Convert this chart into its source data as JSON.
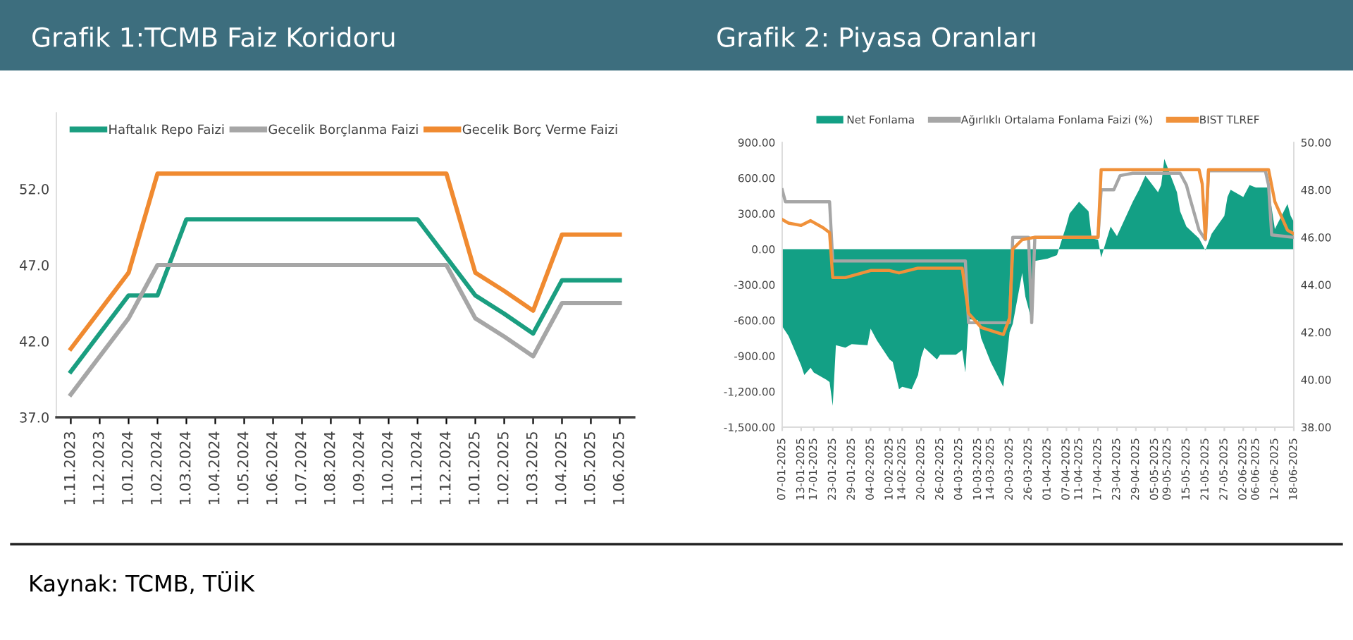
{
  "chart_data": [
    {
      "type": "line",
      "title": "Grafik 1:TCMB Faiz Koridoru",
      "categories": [
        "1.11.2023",
        "1.12.2023",
        "1.01.2024",
        "1.02.2024",
        "1.03.2024",
        "1.04.2024",
        "1.05.2024",
        "1.06.2024",
        "1.07.2024",
        "1.08.2024",
        "1.09.2024",
        "1.10.2024",
        "1.11.2024",
        "1.12.2024",
        "1.01.2025",
        "1.02.2025",
        "1.03.2025",
        "1.04.2025",
        "1.05.2025",
        "1.06.2025"
      ],
      "series": [
        {
          "name": "Haftalık Repo Faizi",
          "color": "#1a9e80",
          "values": [
            40,
            42.5,
            45,
            45,
            50,
            50,
            50,
            50,
            50,
            50,
            50,
            50,
            50,
            47.5,
            45,
            43.8,
            42.5,
            46,
            46,
            46
          ]
        },
        {
          "name": "Gecelik Borçlanma Faizi",
          "color": "#a6a6a6",
          "values": [
            38.5,
            41,
            43.5,
            47,
            47,
            47,
            47,
            47,
            47,
            47,
            47,
            47,
            47,
            47,
            43.5,
            42.3,
            41,
            44.5,
            44.5,
            44.5
          ]
        },
        {
          "name": "Gecelik Borç Verme Faizi",
          "color": "#f08a30",
          "values": [
            41.5,
            44,
            46.5,
            53,
            53,
            53,
            53,
            53,
            53,
            53,
            53,
            53,
            53,
            53,
            46.5,
            45.3,
            44,
            49,
            49,
            49
          ]
        }
      ],
      "ylim": [
        37,
        57
      ],
      "yticks": [
        {
          "value": 37,
          "label": "37.0"
        },
        {
          "value": 42,
          "label": "42.0"
        },
        {
          "value": 47,
          "label": "47.0"
        },
        {
          "value": 52,
          "label": "52.0"
        }
      ],
      "grid": false,
      "legend": "top",
      "line_style": "solid",
      "marker": "none",
      "annotations": [
        "Kaynak: TCMB, TÜİK"
      ]
    },
    {
      "type": "line",
      "title": "Grafik 2: Piyasa Oranları",
      "series": [
        {
          "name": "Net Fonlama",
          "type": "area",
          "color": "#13a085",
          "x": [
            "2025-01-07",
            "2025-01-09",
            "2025-01-13",
            "2025-01-14",
            "2025-01-16",
            "2025-01-17",
            "2025-01-21",
            "2025-01-22",
            "2025-01-23",
            "2025-01-24",
            "2025-01-27",
            "2025-01-29",
            "2025-02-03",
            "2025-02-04",
            "2025-02-06",
            "2025-02-10",
            "2025-02-11",
            "2025-02-13",
            "2025-02-14",
            "2025-02-17",
            "2025-02-19",
            "2025-02-20",
            "2025-02-21",
            "2025-02-25",
            "2025-02-26",
            "2025-03-03",
            "2025-03-05",
            "2025-03-06",
            "2025-03-07",
            "2025-03-10",
            "2025-03-11",
            "2025-03-14",
            "2025-03-18",
            "2025-03-19",
            "2025-03-20",
            "2025-03-21",
            "2025-03-24",
            "2025-03-25",
            "2025-03-26",
            "2025-03-27",
            "2025-03-28",
            "2025-04-01",
            "2025-04-04",
            "2025-04-07",
            "2025-04-08",
            "2025-04-11",
            "2025-04-14",
            "2025-04-15",
            "2025-04-17",
            "2025-04-18",
            "2025-04-21",
            "2025-04-23",
            "2025-04-28",
            "2025-04-30",
            "2025-05-02",
            "2025-05-06",
            "2025-05-07",
            "2025-05-08",
            "2025-05-12",
            "2025-05-13",
            "2025-05-15",
            "2025-05-19",
            "2025-05-21",
            "2025-05-23",
            "2025-05-27",
            "2025-05-28",
            "2025-05-29",
            "2025-06-02",
            "2025-06-04",
            "2025-06-06",
            "2025-06-10",
            "2025-06-12",
            "2025-06-16",
            "2025-06-17",
            "2025-06-18"
          ],
          "values": [
            -650,
            -730,
            -980,
            -1060,
            -1000,
            -1040,
            -1100,
            -1120,
            -1320,
            -810,
            -830,
            -800,
            -810,
            -670,
            -770,
            -930,
            -950,
            -1180,
            -1160,
            -1180,
            -1060,
            -910,
            -830,
            -930,
            -890,
            -890,
            -850,
            -1040,
            -590,
            -600,
            -750,
            -950,
            -1160,
            -950,
            -700,
            -630,
            -200,
            -400,
            -500,
            -610,
            -100,
            -80,
            -50,
            200,
            300,
            400,
            320,
            90,
            80,
            -70,
            190,
            110,
            400,
            500,
            620,
            480,
            540,
            760,
            480,
            320,
            190,
            90,
            -10,
            130,
            280,
            440,
            500,
            440,
            540,
            520,
            520,
            170,
            380,
            280,
            230
          ]
        },
        {
          "name": "Ağırlıklı Ortalama Fonlama Faizi (%)",
          "type": "line",
          "axis": "y2",
          "color": "#a6a6a6",
          "x": [
            "2025-01-07",
            "2025-01-08",
            "2025-01-22",
            "2025-01-23",
            "2025-03-06",
            "2025-03-07",
            "2025-03-20",
            "2025-03-21",
            "2025-03-26",
            "2025-03-27",
            "2025-03-28",
            "2025-04-17",
            "2025-04-18",
            "2025-04-22",
            "2025-04-24",
            "2025-04-28",
            "2025-05-13",
            "2025-05-15",
            "2025-05-16",
            "2025-05-19",
            "2025-05-21",
            "2025-05-22",
            "2025-06-09",
            "2025-06-10",
            "2025-06-11",
            "2025-06-18"
          ],
          "values": [
            48.0,
            47.5,
            47.5,
            45.0,
            45.0,
            42.4,
            42.4,
            46.0,
            46.0,
            42.4,
            46.0,
            46.0,
            48.0,
            48.0,
            48.6,
            48.7,
            48.7,
            48.2,
            47.7,
            46.3,
            45.9,
            48.8,
            48.8,
            48.2,
            46.1,
            46.0
          ]
        },
        {
          "name": "BIST TLREF",
          "type": "line",
          "axis": "y2",
          "color": "#f0913a",
          "x": [
            "2025-01-07",
            "2025-01-09",
            "2025-01-13",
            "2025-01-16",
            "2025-01-20",
            "2025-01-22",
            "2025-01-23",
            "2025-01-27",
            "2025-02-04",
            "2025-02-10",
            "2025-02-13",
            "2025-02-19",
            "2025-03-05",
            "2025-03-07",
            "2025-03-11",
            "2025-03-18",
            "2025-03-20",
            "2025-03-21",
            "2025-03-24",
            "2025-03-28",
            "2025-04-17",
            "2025-04-18",
            "2025-05-19",
            "2025-05-20",
            "2025-05-21",
            "2025-05-22",
            "2025-06-10",
            "2025-06-12",
            "2025-06-16",
            "2025-06-18"
          ],
          "values": [
            46.75,
            46.6,
            46.5,
            46.7,
            46.4,
            46.2,
            44.3,
            44.3,
            44.6,
            44.6,
            44.5,
            44.7,
            44.7,
            42.8,
            42.2,
            41.9,
            42.6,
            45.5,
            45.9,
            46.0,
            46.0,
            48.85,
            48.85,
            48.25,
            45.95,
            48.85,
            48.85,
            47.5,
            46.3,
            46.15
          ]
        }
      ],
      "xlim": [
        "2025-01-07",
        "2025-06-18"
      ],
      "xticks": [
        {
          "value": "2025-01-07",
          "label": "07-01-2025"
        },
        {
          "value": "2025-01-13",
          "label": "13-01-2025"
        },
        {
          "value": "2025-01-17",
          "label": "17-01-2025"
        },
        {
          "value": "2025-01-23",
          "label": "23-01-2025"
        },
        {
          "value": "2025-01-29",
          "label": "29-01-2025"
        },
        {
          "value": "2025-02-04",
          "label": "04-02-2025"
        },
        {
          "value": "2025-02-10",
          "label": "10-02-2025"
        },
        {
          "value": "2025-02-14",
          "label": "14-02-2025"
        },
        {
          "value": "2025-02-20",
          "label": "20-02-2025"
        },
        {
          "value": "2025-02-26",
          "label": "26-02-2025"
        },
        {
          "value": "2025-03-04",
          "label": "04-03-2025"
        },
        {
          "value": "2025-03-10",
          "label": "10-03-2025"
        },
        {
          "value": "2025-03-14",
          "label": "14-03-2025"
        },
        {
          "value": "2025-03-20",
          "label": "20-03-2025"
        },
        {
          "value": "2025-03-26",
          "label": "26-03-2025"
        },
        {
          "value": "2025-04-01",
          "label": "01-04-2025"
        },
        {
          "value": "2025-04-07",
          "label": "07-04-2025"
        },
        {
          "value": "2025-04-11",
          "label": "11-04-2025"
        },
        {
          "value": "2025-04-17",
          "label": "17-04-2025"
        },
        {
          "value": "2025-04-23",
          "label": "23-04-2025"
        },
        {
          "value": "2025-04-29",
          "label": "29-04-2025"
        },
        {
          "value": "2025-05-05",
          "label": "05-05-2025"
        },
        {
          "value": "2025-05-09",
          "label": "09-05-2025"
        },
        {
          "value": "2025-05-15",
          "label": "15-05-2025"
        },
        {
          "value": "2025-05-21",
          "label": "21-05-2025"
        },
        {
          "value": "2025-05-27",
          "label": "27-05-2025"
        },
        {
          "value": "2025-06-02",
          "label": "02-06-2025"
        },
        {
          "value": "2025-06-06",
          "label": "06-06-2025"
        },
        {
          "value": "2025-06-12",
          "label": "12-06-2025"
        },
        {
          "value": "2025-06-18",
          "label": "18-06-2025"
        }
      ],
      "ylim": [
        -1500,
        900
      ],
      "yticks": [
        {
          "value": -1500,
          "label": "-1,500.00"
        },
        {
          "value": -1200,
          "label": "-1,200.00"
        },
        {
          "value": -900,
          "label": "-900.00"
        },
        {
          "value": -600,
          "label": "-600.00"
        },
        {
          "value": -300,
          "label": "-300.00"
        },
        {
          "value": 0,
          "label": "0.00"
        },
        {
          "value": 300,
          "label": "300.00"
        },
        {
          "value": 600,
          "label": "600.00"
        },
        {
          "value": 900,
          "label": "900.00"
        }
      ],
      "y2lim": [
        38,
        50
      ],
      "y2ticks": [
        {
          "value": 38,
          "label": "38.00"
        },
        {
          "value": 40,
          "label": "40.00"
        },
        {
          "value": 42,
          "label": "42.00"
        },
        {
          "value": 44,
          "label": "44.00"
        },
        {
          "value": 46,
          "label": "46.00"
        },
        {
          "value": 48,
          "label": "48.00"
        },
        {
          "value": 50,
          "label": "50.00"
        }
      ],
      "grid": false,
      "legend": "top",
      "line_style": "solid",
      "marker": "none"
    }
  ]
}
